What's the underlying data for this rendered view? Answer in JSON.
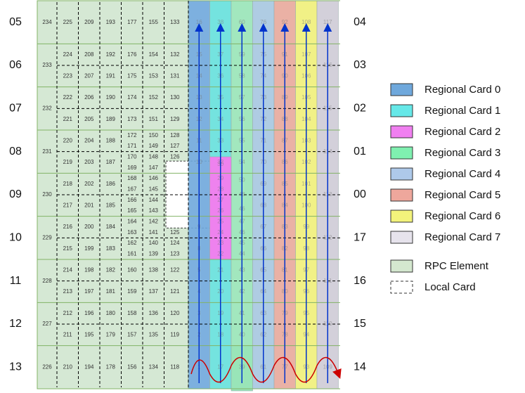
{
  "left_row_labels": [
    "05",
    "06",
    "07",
    "08",
    "09",
    "10",
    "11",
    "12",
    "13"
  ],
  "right_row_labels": [
    "04",
    "03",
    "02",
    "01",
    "00",
    "17",
    "16",
    "15",
    "14"
  ],
  "row_ids": [
    "234",
    "233",
    "232",
    "231",
    "230",
    "229",
    "228",
    "227",
    "226"
  ],
  "rows": [
    [
      [
        "225"
      ],
      [
        "209"
      ],
      [
        "193"
      ],
      [
        "177"
      ],
      [
        "155"
      ],
      [
        "133"
      ]
    ],
    [
      [
        "224",
        "223"
      ],
      [
        "208",
        "207"
      ],
      [
        "192",
        "191"
      ],
      [
        "176",
        "175"
      ],
      [
        "154",
        "153"
      ],
      [
        "132",
        "131"
      ]
    ],
    [
      [
        "222",
        "221"
      ],
      [
        "206",
        "205"
      ],
      [
        "190",
        "189"
      ],
      [
        "174",
        "173"
      ],
      [
        "152",
        "151"
      ],
      [
        "130",
        "129"
      ]
    ],
    [
      [
        "220",
        "219"
      ],
      [
        "204",
        "203"
      ],
      [
        "188",
        "187"
      ],
      [
        "172",
        "171",
        "170",
        "169"
      ],
      [
        "150",
        "149",
        "148",
        "147"
      ],
      [
        "128",
        "127",
        "126",
        ""
      ]
    ],
    [
      [
        "218",
        "217"
      ],
      [
        "202",
        "201"
      ],
      [
        "186",
        "185"
      ],
      [
        "168",
        "167",
        "166",
        "165"
      ],
      [
        "146",
        "145",
        "144",
        "143"
      ],
      [
        "",
        "",
        "",
        ""
      ]
    ],
    [
      [
        "216",
        "215"
      ],
      [
        "200",
        "199"
      ],
      [
        "184",
        "183"
      ],
      [
        "164",
        "163",
        "162",
        "161"
      ],
      [
        "142",
        "141",
        "140",
        "139"
      ],
      [
        "",
        "125",
        "124",
        "123"
      ]
    ],
    [
      [
        "214",
        "213"
      ],
      [
        "198",
        "197"
      ],
      [
        "182",
        "181"
      ],
      [
        "160",
        "159"
      ],
      [
        "138",
        "137"
      ],
      [
        "122",
        "121"
      ]
    ],
    [
      [
        "212",
        "211"
      ],
      [
        "196",
        "195"
      ],
      [
        "180",
        "179"
      ],
      [
        "158",
        "157"
      ],
      [
        "136",
        "135"
      ],
      [
        "120",
        "119"
      ]
    ],
    [
      [
        "210"
      ],
      [
        "194"
      ],
      [
        "178"
      ],
      [
        "156"
      ],
      [
        "134"
      ],
      [
        "118"
      ]
    ]
  ],
  "regional_columns": [
    {
      "color": "#6fa8dc",
      "nums": [
        [
          "16"
        ],
        [
          "15",
          "14"
        ],
        [
          "13",
          "12"
        ],
        [
          "11",
          "10"
        ],
        [],
        [
          "9",
          "8"
        ],
        [
          "5",
          "4"
        ],
        [
          "3",
          "2"
        ],
        [
          "1"
        ]
      ]
    },
    {
      "color": "#66e0dc",
      "nums": [
        [
          "38"
        ],
        [
          "37",
          "36"
        ],
        [
          "35",
          "34"
        ],
        [
          "33",
          "32"
        ],
        [],
        [
          "",
          ""
        ],
        [
          "21",
          "20"
        ],
        [
          "19",
          "18"
        ],
        [
          "17"
        ]
      ]
    },
    {
      "color": "#99e5b8",
      "nums": [
        [
          "60"
        ],
        [
          "59",
          "58"
        ],
        [
          "57",
          "56"
        ],
        [
          "55",
          "54"
        ],
        [
          "50",
          "48",
          "46"
        ],
        [
          "47",
          "46",
          "45",
          "44"
        ],
        [
          "43",
          "42"
        ],
        [
          "41",
          "40"
        ],
        [
          "39"
        ]
      ]
    },
    {
      "color": "#a7c7e0",
      "nums": [
        [
          "76"
        ],
        [
          "75",
          "74"
        ],
        [
          "73",
          "72"
        ],
        [
          "71",
          "70"
        ],
        [
          "69",
          "68"
        ],
        [
          "67",
          "66"
        ],
        [
          "65",
          "64"
        ],
        [
          "63",
          "62"
        ],
        [
          "61"
        ]
      ]
    },
    {
      "color": "#e8a99c",
      "nums": [
        [
          "92"
        ],
        [
          "91",
          "90"
        ],
        [
          "89",
          "88"
        ],
        [
          "87",
          "86"
        ],
        [
          "85",
          "84"
        ],
        [
          "83",
          "82"
        ],
        [
          "81",
          "80"
        ],
        [
          "79",
          "78"
        ],
        [
          "77"
        ]
      ]
    },
    {
      "color": "#f0f07a",
      "nums": [
        [
          "108"
        ],
        [
          "107",
          "106"
        ],
        [
          "105",
          "104"
        ],
        [
          "103",
          "102"
        ],
        [
          "101",
          "100"
        ],
        [
          "99",
          "98"
        ],
        [
          "97",
          "96"
        ],
        [
          "95",
          "94"
        ],
        [
          "93"
        ]
      ]
    },
    {
      "color": "#cfcbd6",
      "nums": [
        [
          "117"
        ],
        [
          "116"
        ],
        [
          "115"
        ],
        [
          "114"
        ],
        [
          "113"
        ],
        [
          "112"
        ],
        [
          "111"
        ],
        [
          "110"
        ],
        [
          "109"
        ]
      ]
    }
  ],
  "magenta_cells": {
    "color": "#ee82ee",
    "nums": [
      [
        "30"
      ],
      [
        "29",
        "28",
        "27",
        "26"
      ],
      [
        "25",
        "24",
        "23",
        "22"
      ]
    ]
  },
  "legend": [
    {
      "label": "Regional Card 0",
      "color": "#6fa8dc",
      "kind": "solid"
    },
    {
      "label": "Regional Card 1",
      "color": "#66e8e8",
      "kind": "solid"
    },
    {
      "label": "Regional Card 2",
      "color": "#f07ff0",
      "kind": "solid"
    },
    {
      "label": "Regional Card 3",
      "color": "#7ff0b0",
      "kind": "solid"
    },
    {
      "label": "Regional Card 4",
      "color": "#aec9ea",
      "kind": "solid"
    },
    {
      "label": "Regional Card 5",
      "color": "#eea79c",
      "kind": "solid"
    },
    {
      "label": "Regional Card 6",
      "color": "#f3f37b",
      "kind": "solid"
    },
    {
      "label": "Regional Card 7",
      "color": "#e6e3ec",
      "kind": "solid"
    },
    {
      "label": "RPC Element",
      "color": "#d4e8cf",
      "kind": "solid"
    },
    {
      "label": "Local Card",
      "color": "#ffffff",
      "kind": "dashed"
    }
  ],
  "colors": {
    "rpc_fill": "#d5e8d4",
    "rpc_border": "#82b366",
    "arrow_blue": "#0033cc",
    "arrow_red": "#cc0000"
  }
}
